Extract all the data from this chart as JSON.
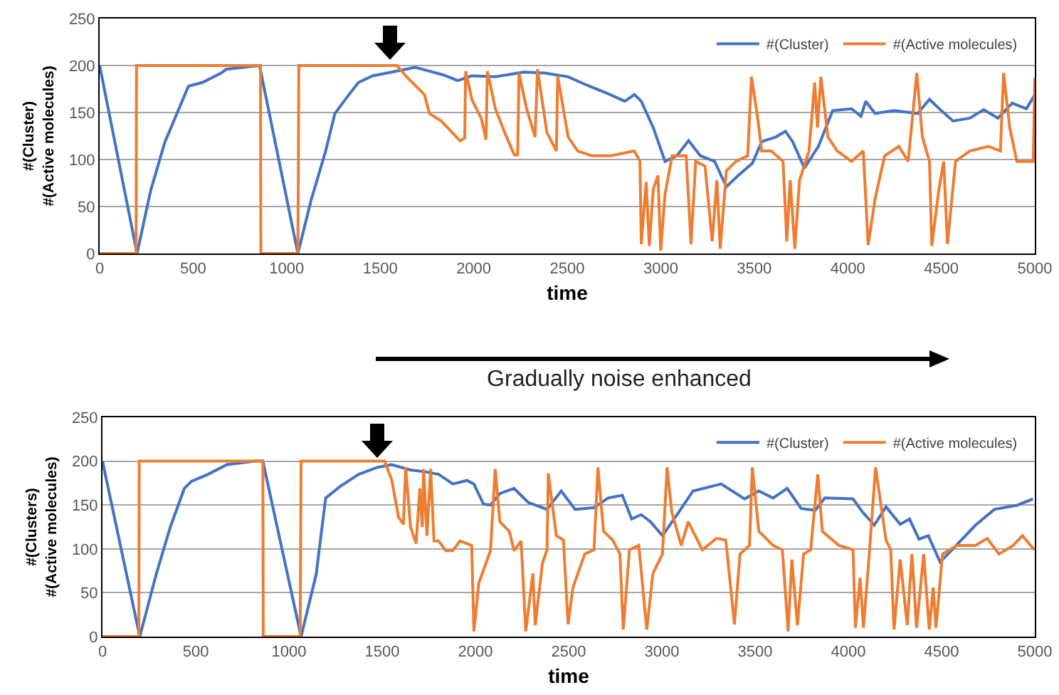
{
  "chart_data": [
    {
      "type": "line",
      "xlabel": "time",
      "ylabel": "#(Cluster)\n#(Active molecules)",
      "xlim": [
        0,
        5000
      ],
      "xticks": [
        0,
        500,
        1000,
        1500,
        2000,
        2500,
        3000,
        3500,
        4000,
        4500,
        5000
      ],
      "ylim": [
        0,
        250
      ],
      "yticks": [
        0,
        50,
        100,
        150,
        200,
        250
      ],
      "grid": "y",
      "legend": "top right",
      "marker": "none",
      "line_style": "solid",
      "series": [
        {
          "name": "#(Cluster)",
          "color": "#4472c4",
          "x": [
            0,
            200,
            273,
            348,
            424,
            475,
            550,
            650,
            677,
            855,
            1060,
            1131,
            1207,
            1258,
            1333,
            1384,
            1460,
            1586,
            1687,
            1763,
            1838,
            1914,
            1990,
            2116,
            2268,
            2379,
            2505,
            2606,
            2707,
            2808,
            2859,
            2896,
            2960,
            3023,
            3086,
            3149,
            3212,
            3288,
            3351,
            3414,
            3490,
            3540,
            3616,
            3667,
            3705,
            3768,
            3843,
            3919,
            4020,
            4071,
            4096,
            4146,
            4247,
            4374,
            4437,
            4500,
            4563,
            4652,
            4727,
            4803,
            4879,
            4955,
            5000
          ],
          "values": [
            200,
            0,
            67,
            118,
            154,
            178,
            182,
            192,
            196,
            200,
            0,
            57,
            108,
            149,
            169,
            182,
            189,
            194,
            198,
            194,
            190,
            184,
            189,
            188,
            193,
            192,
            188,
            179,
            171,
            162,
            169,
            162,
            134,
            98,
            104,
            120,
            104,
            98,
            71,
            83,
            96,
            119,
            124,
            130,
            119,
            91,
            114,
            152,
            154,
            146,
            162,
            149,
            152,
            149,
            164,
            152,
            141,
            144,
            153,
            144,
            160,
            154,
            169
          ]
        },
        {
          "name": "#(Active molecules)",
          "color": "#ed7d31",
          "x": [
            0,
            195,
            197,
            860,
            862,
            1060,
            1065,
            1590,
            1636,
            1737,
            1763,
            1826,
            1889,
            1927,
            1952,
            1957,
            1990,
            2040,
            2066,
            2073,
            2116,
            2167,
            2217,
            2235,
            2242,
            2283,
            2328,
            2341,
            2391,
            2442,
            2449,
            2505,
            2556,
            2631,
            2732,
            2859,
            2889,
            2896,
            2922,
            2939,
            2960,
            2985,
            3000,
            3023,
            3061,
            3136,
            3162,
            3187,
            3237,
            3275,
            3300,
            3318,
            3351,
            3402,
            3465,
            3485,
            3515,
            3540,
            3591,
            3654,
            3674,
            3692,
            3717,
            3742,
            3793,
            3823,
            3838,
            3856,
            3894,
            3944,
            4020,
            4083,
            4109,
            4146,
            4197,
            4273,
            4323,
            4369,
            4399,
            4437,
            4449,
            4487,
            4513,
            4533,
            4576,
            4652,
            4753,
            4816,
            4833,
            4866,
            4904,
            4992,
            5000
          ],
          "values": [
            0,
            0,
            200,
            200,
            0,
            0,
            200,
            200,
            189,
            169,
            149,
            141,
            128,
            120,
            123,
            194,
            164,
            144,
            121,
            194,
            154,
            128,
            105,
            105,
            192,
            154,
            124,
            196,
            129,
            109,
            189,
            124,
            109,
            104,
            104,
            109,
            98,
            10,
            76,
            8,
            68,
            83,
            3,
            63,
            104,
            104,
            10,
            98,
            93,
            13,
            78,
            5,
            88,
            98,
            104,
            188,
            149,
            109,
            109,
            98,
            13,
            78,
            5,
            78,
            109,
            182,
            134,
            188,
            124,
            109,
            98,
            109,
            9,
            58,
            104,
            114,
            98,
            192,
            124,
            98,
            8,
            68,
            98,
            10,
            98,
            109,
            114,
            109,
            192,
            134,
            98,
            98,
            187
          ]
        }
      ]
    },
    {
      "type": "line",
      "xlabel": "time",
      "ylabel": "#(Clusters)\n#(Active molecules)",
      "annotations": [
        "Gradually noise enhanced"
      ],
      "xlim": [
        0,
        5000
      ],
      "xticks": [
        0,
        500,
        1000,
        1500,
        2000,
        2500,
        3000,
        3500,
        4000,
        4500,
        5000
      ],
      "ylim": [
        0,
        250
      ],
      "yticks": [
        0,
        50,
        100,
        150,
        200,
        250
      ],
      "grid": "y",
      "legend": "top right",
      "marker": "none",
      "line_style": "solid",
      "series": [
        {
          "name": "#(Cluster)",
          "color": "#4472c4",
          "x": [
            0,
            200,
            288,
            364,
            439,
            477,
            566,
            667,
            818,
            860,
            1065,
            1146,
            1197,
            1273,
            1374,
            1475,
            1551,
            1652,
            1727,
            1803,
            1879,
            1955,
            1992,
            2043,
            2081,
            2131,
            2207,
            2283,
            2384,
            2460,
            2535,
            2636,
            2712,
            2788,
            2838,
            2889,
            2939,
            3003,
            3091,
            3167,
            3318,
            3444,
            3520,
            3596,
            3672,
            3747,
            3823,
            3874,
            4025,
            4076,
            4139,
            4202,
            4278,
            4328,
            4379,
            4429,
            4492,
            4556,
            4682,
            4783,
            4909,
            4990
          ],
          "values": [
            200,
            0,
            71,
            125,
            169,
            177,
            185,
            196,
            200,
            200,
            0,
            71,
            158,
            171,
            185,
            193,
            196,
            190,
            188,
            185,
            174,
            178,
            174,
            151,
            150,
            163,
            169,
            153,
            145,
            166,
            145,
            147,
            158,
            161,
            134,
            139,
            131,
            115,
            142,
            166,
            174,
            157,
            166,
            158,
            169,
            146,
            144,
            158,
            157,
            142,
            127,
            148,
            128,
            134,
            111,
            115,
            85,
            99,
            127,
            145,
            150,
            157
          ]
        },
        {
          "name": "#(Active molecules)",
          "color": "#ed7d31",
          "x": [
            0,
            195,
            197,
            860,
            862,
            1060,
            1065,
            1513,
            1551,
            1588,
            1614,
            1626,
            1652,
            1682,
            1702,
            1715,
            1722,
            1740,
            1760,
            1778,
            1803,
            1841,
            1879,
            1917,
            1980,
            1992,
            2018,
            2081,
            2106,
            2131,
            2182,
            2207,
            2245,
            2270,
            2308,
            2321,
            2359,
            2384,
            2391,
            2434,
            2472,
            2497,
            2523,
            2586,
            2636,
            2657,
            2687,
            2737,
            2775,
            2793,
            2826,
            2876,
            2919,
            2952,
            3003,
            3028,
            3053,
            3104,
            3141,
            3179,
            3217,
            3293,
            3343,
            3389,
            3419,
            3470,
            3485,
            3520,
            3596,
            3646,
            3677,
            3697,
            3727,
            3760,
            3798,
            3836,
            3861,
            3949,
            4025,
            4038,
            4063,
            4081,
            4114,
            4146,
            4202,
            4227,
            4245,
            4278,
            4316,
            4341,
            4366,
            4404,
            4434,
            4455,
            4470,
            4505,
            4581,
            4682,
            4745,
            4808,
            4884,
            4934,
            4997
          ],
          "values": [
            0,
            0,
            200,
            200,
            0,
            0,
            200,
            200,
            179,
            136,
            128,
            193,
            125,
            106,
            169,
            125,
            191,
            115,
            191,
            109,
            109,
            98,
            98,
            109,
            104,
            6,
            61,
            98,
            191,
            131,
            120,
            98,
            109,
            6,
            72,
            13,
            83,
            99,
            186,
            115,
            110,
            14,
            56,
            94,
            99,
            193,
            120,
            110,
            94,
            8,
            99,
            104,
            8,
            72,
            94,
            193,
            142,
            104,
            131,
            115,
            99,
            112,
            110,
            14,
            94,
            104,
            193,
            120,
            104,
            99,
            6,
            88,
            13,
            94,
            99,
            185,
            120,
            104,
            99,
            10,
            67,
            10,
            99,
            193,
            110,
            99,
            8,
            88,
            13,
            94,
            10,
            94,
            8,
            56,
            10,
            94,
            104,
            104,
            112,
            94,
            104,
            115,
            99
          ]
        }
      ]
    }
  ]
}
